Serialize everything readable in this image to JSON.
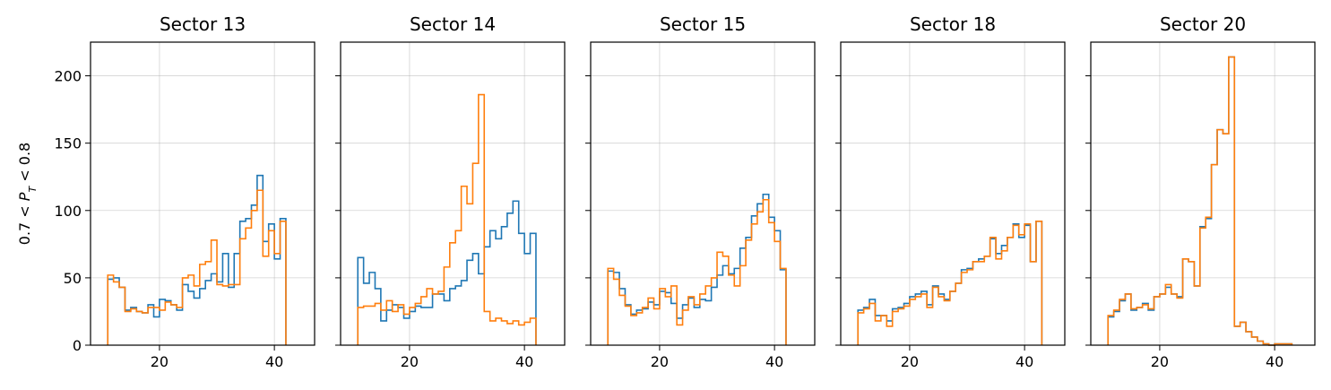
{
  "colors": {
    "series_a": "#1f77b4",
    "series_b": "#ff7f0e",
    "grid": "#b0b0b0"
  },
  "ylabel_parts": {
    "lhs": "0.7 < ",
    "var": "P",
    "sub": "T",
    "rhs": " < 0.8"
  },
  "chart_data": {
    "type": "histogram",
    "layout": "1x5 small multiples, shared y-axis",
    "ylim": [
      0,
      225
    ],
    "xlim": [
      8,
      47
    ],
    "yticks": [
      0,
      50,
      100,
      150,
      200
    ],
    "xticks": [
      20,
      40
    ],
    "grid": true,
    "bin_width": 1,
    "bin_start": 11,
    "panels": [
      {
        "title": "Sector 13",
        "series": [
          {
            "color": "#1f77b4",
            "values": [
              49,
              50,
              43,
              26,
              28,
              25,
              24,
              30,
              21,
              34,
              33,
              30,
              26,
              45,
              40,
              35,
              42,
              48,
              53,
              47,
              68,
              43,
              68,
              92,
              94,
              104,
              126,
              77,
              90,
              64,
              94
            ]
          },
          {
            "color": "#ff7f0e",
            "values": [
              52,
              47,
              43,
              25,
              27,
              25,
              24,
              28,
              28,
              26,
              32,
              30,
              28,
              50,
              52,
              44,
              60,
              62,
              78,
              45,
              44,
              45,
              45,
              79,
              87,
              100,
              115,
              66,
              85,
              68,
              92
            ]
          }
        ]
      },
      {
        "title": "Sector 14",
        "series": [
          {
            "color": "#1f77b4",
            "values": [
              65,
              46,
              54,
              42,
              18,
              26,
              30,
              28,
              20,
              25,
              29,
              28,
              28,
              38,
              38,
              33,
              42,
              44,
              48,
              63,
              68,
              53,
              73,
              85,
              79,
              88,
              98,
              107,
              83,
              68,
              83
            ]
          },
          {
            "color": "#ff7f0e",
            "values": [
              28,
              29,
              29,
              31,
              26,
              33,
              25,
              30,
              23,
              28,
              31,
              36,
              42,
              38,
              40,
              58,
              76,
              85,
              118,
              105,
              135,
              186,
              25,
              18,
              20,
              18,
              16,
              18,
              15,
              17,
              20
            ]
          }
        ]
      },
      {
        "title": "Sector 15",
        "series": [
          {
            "color": "#1f77b4",
            "values": [
              55,
              54,
              42,
              30,
              23,
              26,
              27,
              32,
              30,
              40,
              39,
              31,
              20,
              30,
              35,
              28,
              34,
              33,
              43,
              52,
              59,
              53,
              57,
              72,
              80,
              96,
              105,
              112,
              95,
              85,
              56
            ]
          },
          {
            "color": "#ff7f0e",
            "values": [
              57,
              49,
              37,
              29,
              22,
              24,
              28,
              35,
              27,
              42,
              36,
              44,
              15,
              26,
              36,
              30,
              38,
              44,
              50,
              69,
              66,
              52,
              44,
              59,
              78,
              90,
              99,
              108,
              91,
              77,
              57
            ]
          }
        ]
      },
      {
        "title": "Sector 18",
        "series": [
          {
            "color": "#1f77b4",
            "values": [
              26,
              28,
              34,
              22,
              22,
              18,
              27,
              28,
              31,
              36,
              38,
              40,
              30,
              44,
              38,
              34,
              40,
              46,
              56,
              57,
              62,
              64,
              66,
              79,
              68,
              74,
              80,
              90,
              80,
              89,
              62,
              92
            ]
          },
          {
            "color": "#ff7f0e",
            "values": [
              24,
              27,
              31,
              18,
              22,
              14,
              25,
              27,
              29,
              34,
              36,
              38,
              28,
              43,
              36,
              33,
              40,
              46,
              54,
              56,
              62,
              62,
              66,
              80,
              64,
              70,
              80,
              89,
              82,
              90,
              62,
              92
            ]
          }
        ]
      },
      {
        "title": "Sector 20",
        "series": [
          {
            "color": "#1f77b4",
            "values": [
              21,
              25,
              33,
              38,
              26,
              28,
              31,
              26,
              36,
              38,
              43,
              38,
              36,
              64,
              62,
              44,
              88,
              94,
              134,
              160,
              157,
              214,
              14,
              17,
              10,
              6,
              3,
              1,
              0,
              1,
              1,
              1
            ]
          },
          {
            "color": "#ff7f0e",
            "values": [
              22,
              26,
              34,
              38,
              27,
              28,
              30,
              27,
              36,
              38,
              45,
              38,
              35,
              64,
              62,
              44,
              87,
              95,
              134,
              160,
              157,
              214,
              14,
              17,
              10,
              6,
              3,
              1,
              0,
              1,
              1,
              1
            ]
          }
        ]
      }
    ]
  }
}
